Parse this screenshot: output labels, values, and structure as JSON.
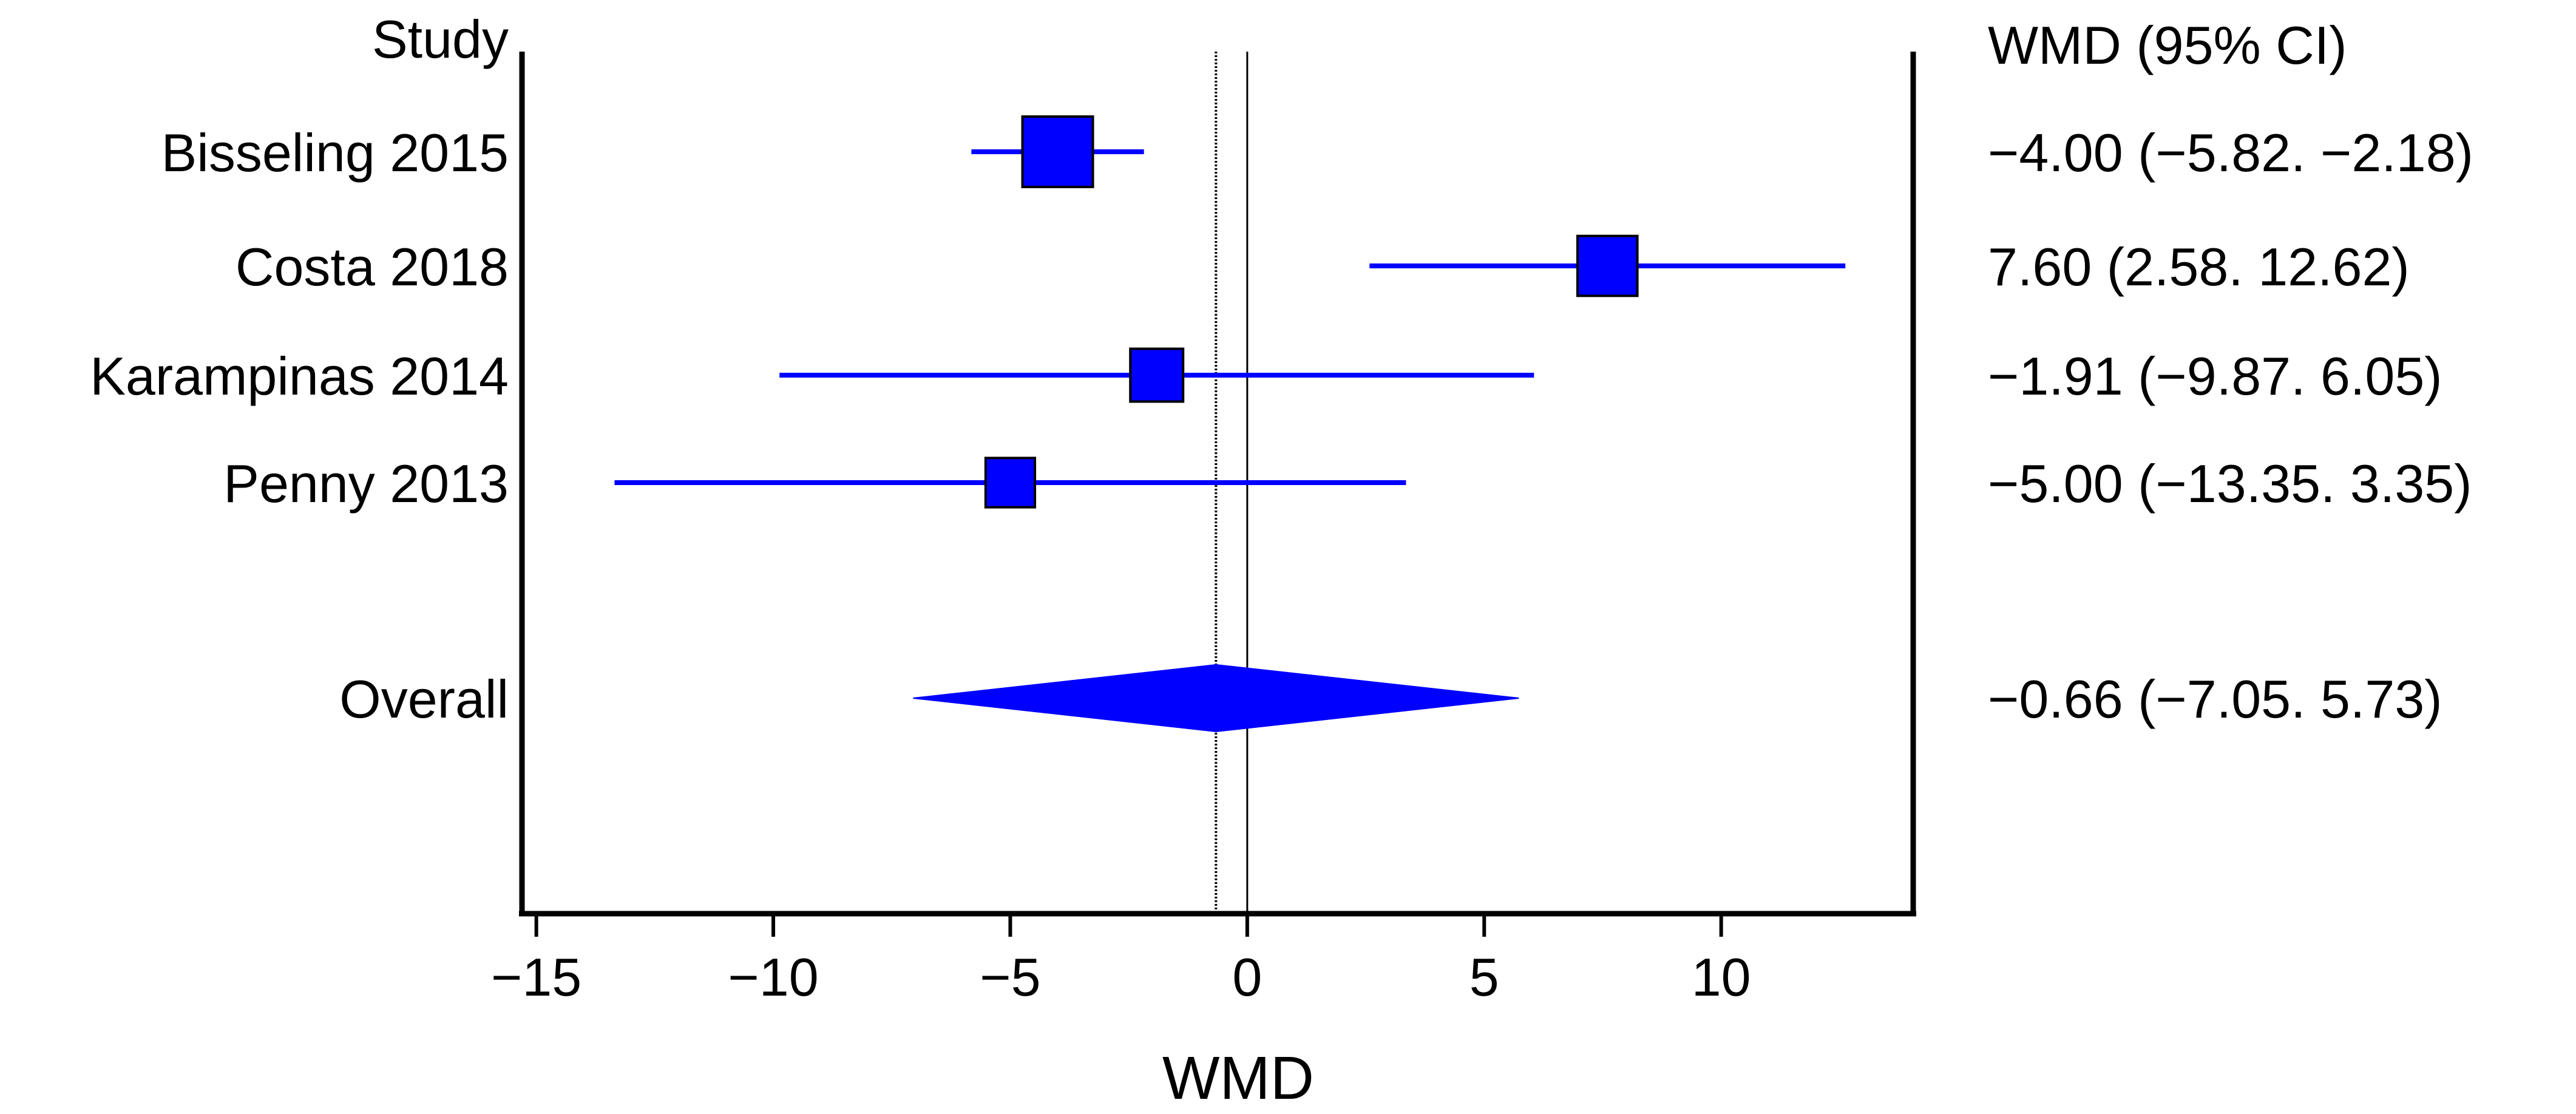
{
  "chart_data": {
    "type": "forest",
    "study_header": "Study",
    "effect_header": "WMD (95% CI)",
    "xlabel": "WMD",
    "xlim": [
      -15.2,
      14.0
    ],
    "xticks": [
      -15,
      -10,
      -5,
      0,
      5,
      10
    ],
    "xtick_labels": [
      "−15",
      "−10",
      "−5",
      "0",
      "5",
      "10"
    ],
    "null_line": 0,
    "overall_line": -0.66,
    "colors": {
      "marker": "#0000FF",
      "axis": "#000000"
    },
    "studies": [
      {
        "name": "Bisseling 2015",
        "wmd": -4.0,
        "lower": -5.82,
        "upper": -2.18,
        "weight_box": 1.0,
        "ci_text": "−4.00 (−5.82. −2.18)"
      },
      {
        "name": "Costa 2018",
        "wmd": 7.6,
        "lower": 2.58,
        "upper": 12.62,
        "weight_box": 0.85,
        "ci_text": "7.60 (2.58. 12.62)"
      },
      {
        "name": "Karampinas 2014",
        "wmd": -1.91,
        "lower": -9.87,
        "upper": 6.05,
        "weight_box": 0.75,
        "ci_text": "−1.91 (−9.87. 6.05)"
      },
      {
        "name": "Penny 2013",
        "wmd": -5.0,
        "lower": -13.35,
        "upper": 3.35,
        "weight_box": 0.7,
        "ci_text": "−5.00 (−13.35. 3.35)"
      }
    ],
    "overall": {
      "name": "Overall",
      "wmd": -0.66,
      "lower": -7.05,
      "upper": 5.73,
      "ci_text": "−0.66 (−7.05. 5.73)"
    }
  }
}
